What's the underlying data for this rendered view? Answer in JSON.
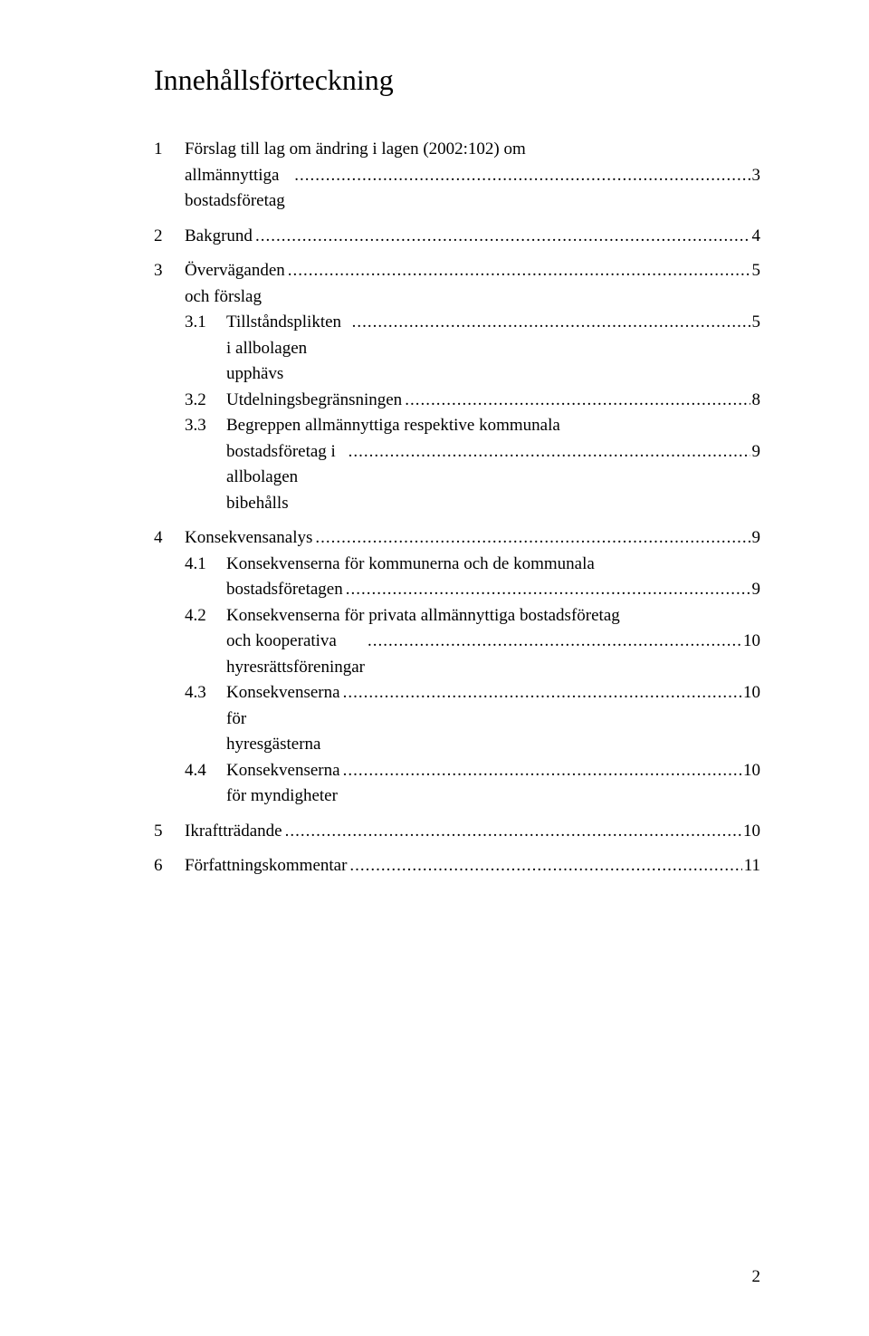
{
  "title": "Innehållsförteckning",
  "leader_text": "..................................................................................................................................................................",
  "toc": [
    {
      "type": "top",
      "num": "1",
      "label": "Förslag till lag om ändring i lagen (2002:102) om allmännyttiga bostadsföretag",
      "page": "3",
      "multiline": true
    },
    {
      "type": "top",
      "num": "2",
      "label": "Bakgrund",
      "page": "4"
    },
    {
      "type": "top",
      "num": "3",
      "label": "Överväganden och förslag",
      "page": "5"
    },
    {
      "type": "sub",
      "num": "3.1",
      "label": "Tillståndsplikten i allbolagen upphävs",
      "page": "5"
    },
    {
      "type": "sub",
      "num": "3.2",
      "label": "Utdelningsbegränsningen",
      "page": "8"
    },
    {
      "type": "sub",
      "num": "3.3",
      "label": "Begreppen allmännyttiga respektive kommunala bostadsföretag i allbolagen bibehålls",
      "page": "9",
      "multiline": true
    },
    {
      "type": "top",
      "num": "4",
      "label": "Konsekvensanalys",
      "page": "9"
    },
    {
      "type": "sub",
      "num": "4.1",
      "label": "Konsekvenserna för kommunerna och de kommunala bostadsföretagen",
      "page": "9",
      "multiline": true
    },
    {
      "type": "sub",
      "num": "4.2",
      "label": "Konsekvenserna för privata allmännyttiga bostadsföretag och kooperativa hyresrättsföreningar",
      "page": "10",
      "multiline": true
    },
    {
      "type": "sub",
      "num": "4.3",
      "label": "Konsekvenserna för hyresgästerna",
      "page": "10"
    },
    {
      "type": "sub",
      "num": "4.4",
      "label": "Konsekvenserna för myndigheter",
      "page": "10"
    },
    {
      "type": "top",
      "num": "5",
      "label": "Ikraftträdande",
      "page": "10"
    },
    {
      "type": "top",
      "num": "6",
      "label": "Författningskommentar",
      "page": "11"
    }
  ],
  "page_number": "2"
}
